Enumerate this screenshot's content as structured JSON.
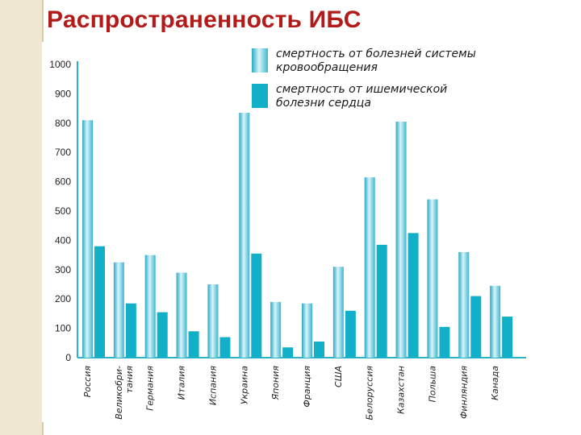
{
  "page": {
    "title": "Распространенность ИБС"
  },
  "chart_data": {
    "type": "bar",
    "title": "",
    "xlabel": "",
    "ylabel": "",
    "ylim": [
      0,
      1000
    ],
    "yticks": [
      0,
      100,
      200,
      300,
      400,
      500,
      600,
      700,
      800,
      900,
      1000
    ],
    "categories": [
      "Россия",
      "Великобри-тания",
      "Германия",
      "Италия",
      "Испания",
      "Украина",
      "Япония",
      "Франция",
      "США",
      "Белоруссия",
      "Казахстан",
      "Польша",
      "Финляндия",
      "Канада"
    ],
    "series": [
      {
        "name": "смертность от болезней системы кровообращения",
        "color": "#7fd0e0",
        "style": "gradient",
        "values": [
          810,
          325,
          350,
          290,
          250,
          835,
          190,
          185,
          310,
          615,
          805,
          540,
          360,
          245
        ]
      },
      {
        "name": "смертность от ишемической болезни сердца",
        "color": "#12b0c8",
        "style": "solid",
        "values": [
          380,
          185,
          155,
          90,
          70,
          355,
          35,
          55,
          160,
          385,
          425,
          105,
          210,
          140
        ]
      }
    ],
    "grid": false,
    "legend": "top-right"
  }
}
